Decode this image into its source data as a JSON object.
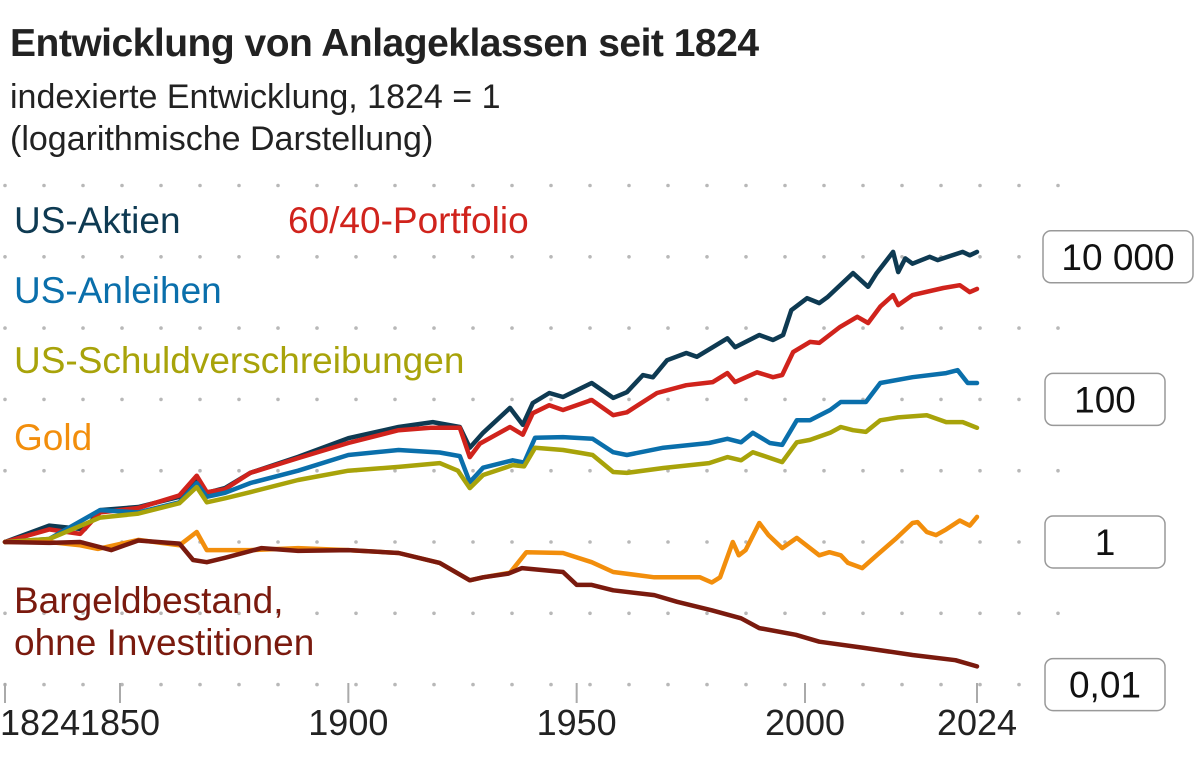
{
  "chart_data": {
    "type": "line",
    "title": "Entwicklung von Anlageklassen seit 1824",
    "subtitle": [
      "indexierte Entwicklung, 1824 = 1",
      "(logarithmische Darstellung)"
    ],
    "xlabel": "",
    "ylabel": "",
    "y_scale": "log",
    "xlim": [
      1824,
      2024
    ],
    "ylim": [
      0.005,
      100000
    ],
    "grid": "dotted horizontal",
    "x_ticks": [
      1824,
      1850,
      1900,
      1950,
      2000,
      2024
    ],
    "x_tick_labels": [
      "1824",
      "1850",
      "1900",
      "1950",
      "2000",
      "2024"
    ],
    "y_ticks": [
      10000,
      100,
      1,
      0.01
    ],
    "y_tick_labels": [
      "10 000",
      "100",
      "1",
      "0,01"
    ],
    "legend_placement": "inline, top-left",
    "series": [
      {
        "name": "US-Aktien",
        "color": "#0e3a52",
        "label_lines": [
          "US-Aktien"
        ],
        "points": [
          [
            1824,
            1
          ],
          [
            1834,
            1.7
          ],
          [
            1842,
            1.5
          ],
          [
            1845.5,
            2.8
          ],
          [
            1854,
            3.1
          ],
          [
            1863,
            4.3
          ],
          [
            1866.8,
            7.9
          ],
          [
            1869,
            4.9
          ],
          [
            1873,
            5.7
          ],
          [
            1878.5,
            9.3
          ],
          [
            1889,
            15.6
          ],
          [
            1900,
            28.6
          ],
          [
            1911,
            41
          ],
          [
            1918.5,
            48
          ],
          [
            1924.4,
            41
          ],
          [
            1926.6,
            21
          ],
          [
            1929.5,
            34
          ],
          [
            1935.4,
            76
          ],
          [
            1938.2,
            44
          ],
          [
            1940.4,
            89
          ],
          [
            1944,
            123
          ],
          [
            1947,
            108
          ],
          [
            1953.3,
            170
          ],
          [
            1958,
            105
          ],
          [
            1961,
            126
          ],
          [
            1964.5,
            219
          ],
          [
            1966.7,
            204
          ],
          [
            1969.8,
            355
          ],
          [
            1974,
            447
          ],
          [
            1976.3,
            396
          ],
          [
            1979.8,
            540
          ],
          [
            1983,
            720
          ],
          [
            1984.7,
            540
          ],
          [
            1990,
            800
          ],
          [
            1993,
            680
          ],
          [
            1995.2,
            800
          ],
          [
            1997,
            1780
          ],
          [
            2000.3,
            2630
          ],
          [
            2002,
            2240
          ],
          [
            2003.2,
            2750
          ],
          [
            2006.7,
            5900
          ],
          [
            2008.8,
            3800
          ],
          [
            2010,
            5900
          ],
          [
            2012.3,
            11700
          ],
          [
            2013,
            6100
          ],
          [
            2014,
            9500
          ],
          [
            2015,
            8000
          ],
          [
            2017.4,
            10000
          ],
          [
            2018.5,
            9000
          ],
          [
            2022,
            11700
          ],
          [
            2023,
            10500
          ],
          [
            2024,
            11700
          ]
        ]
      },
      {
        "name": "60/40-Portfolio",
        "color": "#d0231c",
        "label_lines": [
          "60/40-Portfolio"
        ],
        "points": [
          [
            1824,
            1
          ],
          [
            1834,
            1.5
          ],
          [
            1841,
            1.3
          ],
          [
            1845.5,
            2.6
          ],
          [
            1854,
            3.0
          ],
          [
            1863,
            4.5
          ],
          [
            1866.8,
            8.5
          ],
          [
            1869,
            5.0
          ],
          [
            1873,
            5.5
          ],
          [
            1878.5,
            9.3
          ],
          [
            1889,
            15
          ],
          [
            1900,
            24.5
          ],
          [
            1911,
            37
          ],
          [
            1918,
            40
          ],
          [
            1924.4,
            40
          ],
          [
            1926.6,
            15.5
          ],
          [
            1928.8,
            24
          ],
          [
            1935.4,
            41
          ],
          [
            1938.2,
            32
          ],
          [
            1940.4,
            64
          ],
          [
            1944,
            83
          ],
          [
            1947,
            71
          ],
          [
            1953.3,
            98
          ],
          [
            1958,
            60
          ],
          [
            1961,
            66
          ],
          [
            1967.6,
            123
          ],
          [
            1974,
            158
          ],
          [
            1979.8,
            175
          ],
          [
            1983,
            234
          ],
          [
            1984.7,
            175
          ],
          [
            1989.5,
            240
          ],
          [
            1993,
            205
          ],
          [
            1995,
            220
          ],
          [
            1997.4,
            460
          ],
          [
            2000.7,
            640
          ],
          [
            2002,
            620
          ],
          [
            2004.9,
            1040
          ],
          [
            2007.3,
            1440
          ],
          [
            2008.8,
            1180
          ],
          [
            2010.5,
            2000
          ],
          [
            2012.3,
            2900
          ],
          [
            2013,
            2100
          ],
          [
            2015,
            2900
          ],
          [
            2019.3,
            3650
          ],
          [
            2021.6,
            4000
          ],
          [
            2023,
            3200
          ],
          [
            2024,
            3550
          ]
        ]
      },
      {
        "name": "US-Anleihen",
        "color": "#0a6fab",
        "label_lines": [
          "US-Anleihen"
        ],
        "points": [
          [
            1824,
            1
          ],
          [
            1834,
            1.1
          ],
          [
            1845.5,
            2.8
          ],
          [
            1854,
            2.6
          ],
          [
            1863,
            3.6
          ],
          [
            1866.8,
            6.7
          ],
          [
            1869,
            4.3
          ],
          [
            1873,
            4.9
          ],
          [
            1878.5,
            6.7
          ],
          [
            1889,
            10
          ],
          [
            1900,
            16.6
          ],
          [
            1911,
            19.5
          ],
          [
            1920,
            18
          ],
          [
            1924.4,
            16
          ],
          [
            1926.6,
            6.9
          ],
          [
            1929.5,
            11
          ],
          [
            1936,
            14
          ],
          [
            1938.5,
            13
          ],
          [
            1940.9,
            29
          ],
          [
            1947,
            29.6
          ],
          [
            1953.5,
            28
          ],
          [
            1958,
            18.2
          ],
          [
            1961,
            16.6
          ],
          [
            1969,
            21
          ],
          [
            1979,
            24.5
          ],
          [
            1983,
            28
          ],
          [
            1986,
            25
          ],
          [
            1988.6,
            34
          ],
          [
            1992.3,
            24.5
          ],
          [
            1995,
            23
          ],
          [
            1998.2,
            51
          ],
          [
            2000.7,
            51
          ],
          [
            2003.5,
            71
          ],
          [
            2005,
            92
          ],
          [
            2008.5,
            92
          ],
          [
            2010.5,
            170
          ],
          [
            2015,
            205
          ],
          [
            2019.7,
            234
          ],
          [
            2021.3,
            257
          ],
          [
            2022.7,
            170
          ],
          [
            2024,
            170
          ]
        ]
      },
      {
        "name": "US-Schuldverschreibungen",
        "color": "#a8a30a",
        "label_lines": [
          "US-Schuldverschreibungen"
        ],
        "points": [
          [
            1824,
            1
          ],
          [
            1834,
            1.1
          ],
          [
            1845.5,
            2.2
          ],
          [
            1854,
            2.5
          ],
          [
            1863,
            3.5
          ],
          [
            1866.8,
            5.9
          ],
          [
            1869,
            3.6
          ],
          [
            1873,
            4.1
          ],
          [
            1878.5,
            5
          ],
          [
            1889,
            7.4
          ],
          [
            1900,
            10
          ],
          [
            1911,
            11.3
          ],
          [
            1920,
            12.8
          ],
          [
            1924,
            10
          ],
          [
            1926.6,
            5.7
          ],
          [
            1929.5,
            8.7
          ],
          [
            1936,
            12
          ],
          [
            1938.5,
            11.5
          ],
          [
            1940.9,
            21
          ],
          [
            1947,
            19.5
          ],
          [
            1951,
            17.7
          ],
          [
            1953.5,
            16.6
          ],
          [
            1958,
            9.6
          ],
          [
            1961,
            9.3
          ],
          [
            1969,
            10.9
          ],
          [
            1979,
            12.8
          ],
          [
            1983,
            15.5
          ],
          [
            1986,
            14
          ],
          [
            1988.6,
            18.2
          ],
          [
            1995,
            13.2
          ],
          [
            1998.2,
            25
          ],
          [
            2000.7,
            27
          ],
          [
            2003.5,
            34
          ],
          [
            2005,
            41
          ],
          [
            2006.7,
            37
          ],
          [
            2008.5,
            35
          ],
          [
            2010.5,
            51
          ],
          [
            2013,
            56
          ],
          [
            2017,
            60
          ],
          [
            2019.7,
            48
          ],
          [
            2022,
            48
          ],
          [
            2024,
            40
          ]
        ]
      },
      {
        "name": "Gold",
        "color": "#f28e0c",
        "label_lines": [
          "Gold"
        ],
        "points": [
          [
            1824,
            1
          ],
          [
            1834,
            1.0
          ],
          [
            1841,
            0.9
          ],
          [
            1845,
            0.8
          ],
          [
            1854,
            1.07
          ],
          [
            1863,
            0.9
          ],
          [
            1866.8,
            1.38
          ],
          [
            1869,
            0.77
          ],
          [
            1878.5,
            0.77
          ],
          [
            1889,
            0.82
          ],
          [
            1900,
            0.77
          ],
          [
            1911,
            0.7
          ],
          [
            1920,
            0.51
          ],
          [
            1926.6,
            0.29
          ],
          [
            1929.5,
            0.32
          ],
          [
            1935.4,
            0.37
          ],
          [
            1939,
            0.72
          ],
          [
            1947,
            0.7
          ],
          [
            1953.3,
            0.52
          ],
          [
            1958,
            0.38
          ],
          [
            1967,
            0.32
          ],
          [
            1977,
            0.32
          ],
          [
            1979.6,
            0.27
          ],
          [
            1981.4,
            0.32
          ],
          [
            1984.2,
            1.0
          ],
          [
            1985.5,
            0.65
          ],
          [
            1987,
            0.77
          ],
          [
            1990,
            1.85
          ],
          [
            1992,
            1.25
          ],
          [
            1995,
            0.82
          ],
          [
            1998.2,
            1.14
          ],
          [
            2002,
            0.65
          ],
          [
            2003.4,
            0.72
          ],
          [
            2005,
            0.65
          ],
          [
            2006,
            0.51
          ],
          [
            2008,
            0.43
          ],
          [
            2010,
            0.65
          ],
          [
            2012.8,
            1.14
          ],
          [
            2015,
            1.85
          ],
          [
            2015.7,
            1.9
          ],
          [
            2017,
            1.38
          ],
          [
            2018.3,
            1.25
          ],
          [
            2019.7,
            1.5
          ],
          [
            2021.6,
            2.0
          ],
          [
            2023,
            1.7
          ],
          [
            2024,
            2.25
          ]
        ]
      },
      {
        "name": "Bargeldbestand, ohne Investitionen",
        "color": "#7a1a0e",
        "label_lines": [
          "Bargeldbestand,",
          "ohne Investitionen"
        ],
        "points": [
          [
            1824,
            1
          ],
          [
            1834,
            0.97
          ],
          [
            1841,
            1.0
          ],
          [
            1848,
            0.77
          ],
          [
            1854,
            1.05
          ],
          [
            1863,
            0.95
          ],
          [
            1866,
            0.56
          ],
          [
            1869,
            0.52
          ],
          [
            1873,
            0.6
          ],
          [
            1881,
            0.82
          ],
          [
            1889,
            0.75
          ],
          [
            1900,
            0.77
          ],
          [
            1911,
            0.7
          ],
          [
            1920,
            0.51
          ],
          [
            1926.6,
            0.29
          ],
          [
            1929.5,
            0.32
          ],
          [
            1935,
            0.36
          ],
          [
            1938,
            0.43
          ],
          [
            1947,
            0.38
          ],
          [
            1950,
            0.25
          ],
          [
            1953.3,
            0.25
          ],
          [
            1958,
            0.21
          ],
          [
            1967,
            0.18
          ],
          [
            1972,
            0.145
          ],
          [
            1979.6,
            0.11
          ],
          [
            1986,
            0.085
          ],
          [
            1990,
            0.062
          ],
          [
            1998,
            0.05
          ],
          [
            2002,
            0.04
          ],
          [
            2008,
            0.033
          ],
          [
            2015,
            0.026
          ],
          [
            2021,
            0.022
          ],
          [
            2024,
            0.018
          ]
        ]
      }
    ]
  }
}
